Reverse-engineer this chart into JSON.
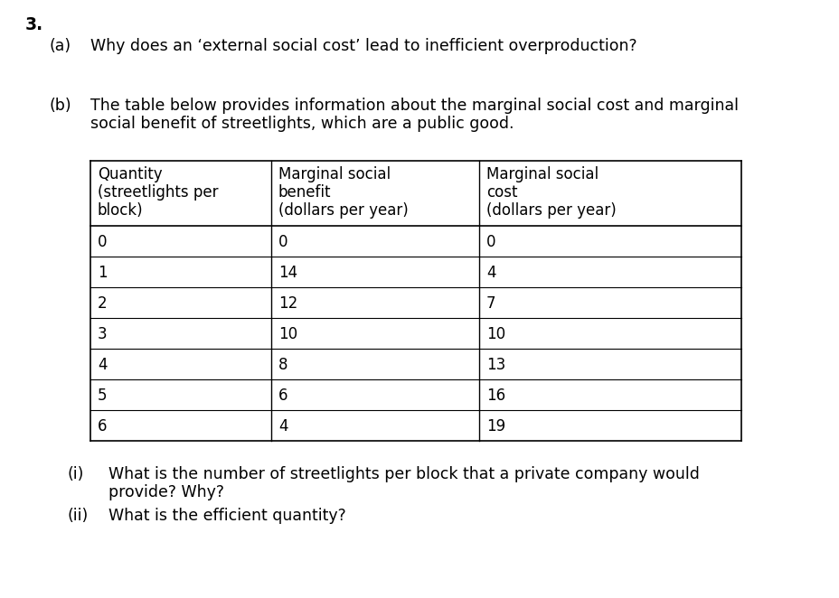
{
  "title_number": "3.",
  "question_a_label": "(a)",
  "question_a_text": "Why does an ‘external social cost’ lead to inefficient overproduction?",
  "question_b_label": "(b)",
  "question_b_line1": "The table below provides information about the marginal social cost and marginal",
  "question_b_line2": "social benefit of streetlights, which are a public good.",
  "col1_header_line1": "Quantity",
  "col1_header_line2": "(streetlights per",
  "col1_header_line3": "block)",
  "col2_header_line1": "Marginal social",
  "col2_header_line2": "benefit",
  "col2_header_line3": "(dollars per year)",
  "col3_header_line1": "Marginal social",
  "col3_header_line2": "cost",
  "col3_header_line3": "(dollars per year)",
  "table_data": [
    [
      0,
      0,
      0
    ],
    [
      1,
      14,
      4
    ],
    [
      2,
      12,
      7
    ],
    [
      3,
      10,
      10
    ],
    [
      4,
      8,
      13
    ],
    [
      5,
      6,
      16
    ],
    [
      6,
      4,
      19
    ]
  ],
  "sub_i_label": "(i)",
  "sub_i_line1": "What is the number of streetlights per block that a private company would",
  "sub_i_line2": "provide? Why?",
  "sub_ii_label": "(ii)",
  "sub_ii_text": "What is the efficient quantity?",
  "background_color": "#ffffff",
  "text_color": "#000000",
  "font_size_main": 12.5,
  "font_size_number": 13.5,
  "font_size_table": 12.0
}
